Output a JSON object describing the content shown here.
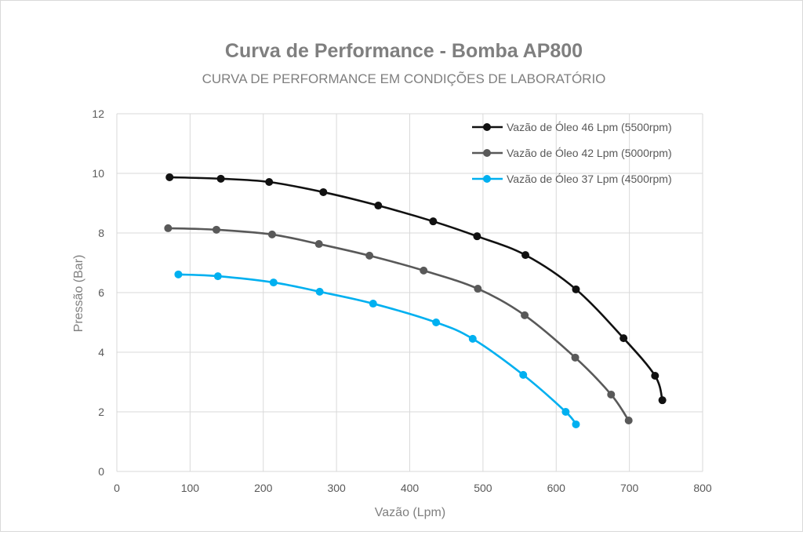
{
  "chart_data": {
    "type": "line",
    "title": "Curva de Performance - Bomba AP800",
    "subtitle": "CURVA DE PERFORMANCE EM CONDIÇÕES DE LABORATÓRIO",
    "xlabel": "Vazão (Lpm)",
    "ylabel": "Pressão (Bar)",
    "xlim": [
      0,
      800
    ],
    "ylim": [
      0,
      12
    ],
    "xticks": [
      0,
      100,
      200,
      300,
      400,
      500,
      600,
      700,
      800
    ],
    "yticks": [
      0,
      2,
      4,
      6,
      8,
      10,
      12
    ],
    "grid": true,
    "smooth": true,
    "legend_position": "top-right",
    "series": [
      {
        "name": "Vazão de Óleo 46 Lpm (5500rpm)",
        "color": "#111111",
        "x": [
          72,
          142,
          208,
          282,
          357,
          432,
          492,
          558,
          627,
          692,
          735,
          745
        ],
        "y": [
          9.87,
          9.82,
          9.71,
          9.37,
          8.92,
          8.39,
          7.89,
          7.26,
          6.11,
          4.47,
          3.21,
          2.39
        ]
      },
      {
        "name": "Vazão de Óleo 42 Lpm (5000rpm)",
        "color": "#595959",
        "x": [
          70,
          136,
          212,
          276,
          345,
          419,
          493,
          557,
          626,
          675,
          699
        ],
        "y": [
          8.16,
          8.11,
          7.95,
          7.63,
          7.24,
          6.74,
          6.13,
          5.24,
          3.82,
          2.58,
          1.71
        ]
      },
      {
        "name": "Vazão de Óleo 37 Lpm (4500rpm)",
        "color": "#00B0F0",
        "x": [
          84,
          138,
          214,
          277,
          350,
          436,
          486,
          555,
          613,
          627
        ],
        "y": [
          6.61,
          6.55,
          6.34,
          6.03,
          5.63,
          5.0,
          4.45,
          3.24,
          2.0,
          1.58
        ]
      }
    ]
  }
}
